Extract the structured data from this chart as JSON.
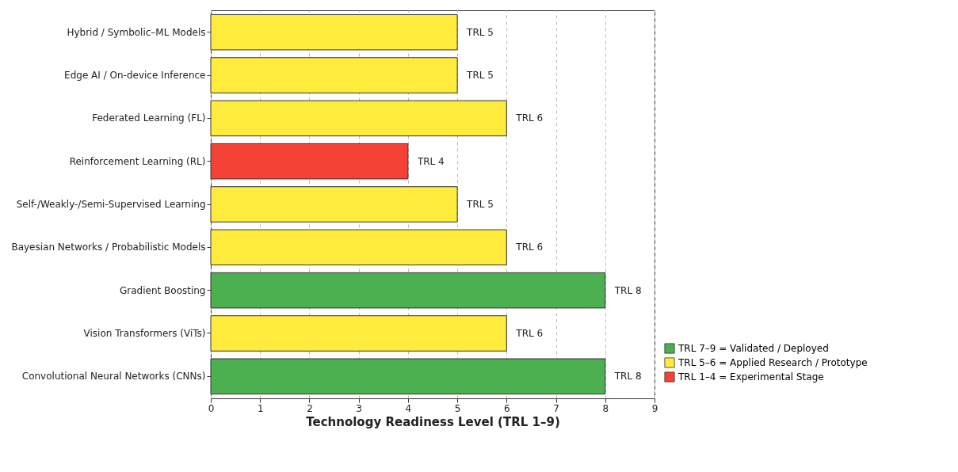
{
  "chart_data": {
    "type": "bar",
    "orientation": "horizontal",
    "categories": [
      "Hybrid / Symbolic–ML Models",
      "Edge AI / On-device Inference",
      "Federated Learning (FL)",
      "Reinforcement Learning (RL)",
      "Self-/Weakly-/Semi-Supervised Learning",
      "Bayesian Networks / Probabilistic Models",
      "Gradient Boosting",
      "Vision Transformers (ViTs)",
      "Convolutional Neural Networks (CNNs)"
    ],
    "series": [
      {
        "name": "TRL 7–9 = Validated / Deployed",
        "color": "#4caf50",
        "values": [
          null,
          null,
          null,
          null,
          null,
          null,
          8,
          null,
          8
        ],
        "value_labels": [
          null,
          null,
          null,
          null,
          null,
          null,
          "TRL 8",
          null,
          "TRL 8"
        ]
      },
      {
        "name": "TRL 5–6 = Applied Research / Prototype",
        "color": "#ffeb3b",
        "values": [
          5,
          5,
          6,
          null,
          5,
          6,
          null,
          6,
          null
        ],
        "value_labels": [
          "TRL 5",
          "TRL 5",
          "TRL 6",
          null,
          "TRL 5",
          "TRL 6",
          null,
          "TRL 6",
          null
        ]
      },
      {
        "name": "TRL 1–4 = Experimental Stage",
        "color": "#f44336",
        "values": [
          null,
          null,
          null,
          4,
          null,
          null,
          null,
          null,
          null
        ],
        "value_labels": [
          null,
          null,
          null,
          "TRL 4",
          null,
          null,
          null,
          null,
          null
        ]
      }
    ],
    "xlabel": "Technology Readiness Level (TRL 1–9)",
    "xlim": [
      0,
      9
    ],
    "xticks": [
      0,
      1,
      2,
      3,
      4,
      5,
      6,
      7,
      8,
      9
    ],
    "grid": "x",
    "legend": "bottom right"
  }
}
